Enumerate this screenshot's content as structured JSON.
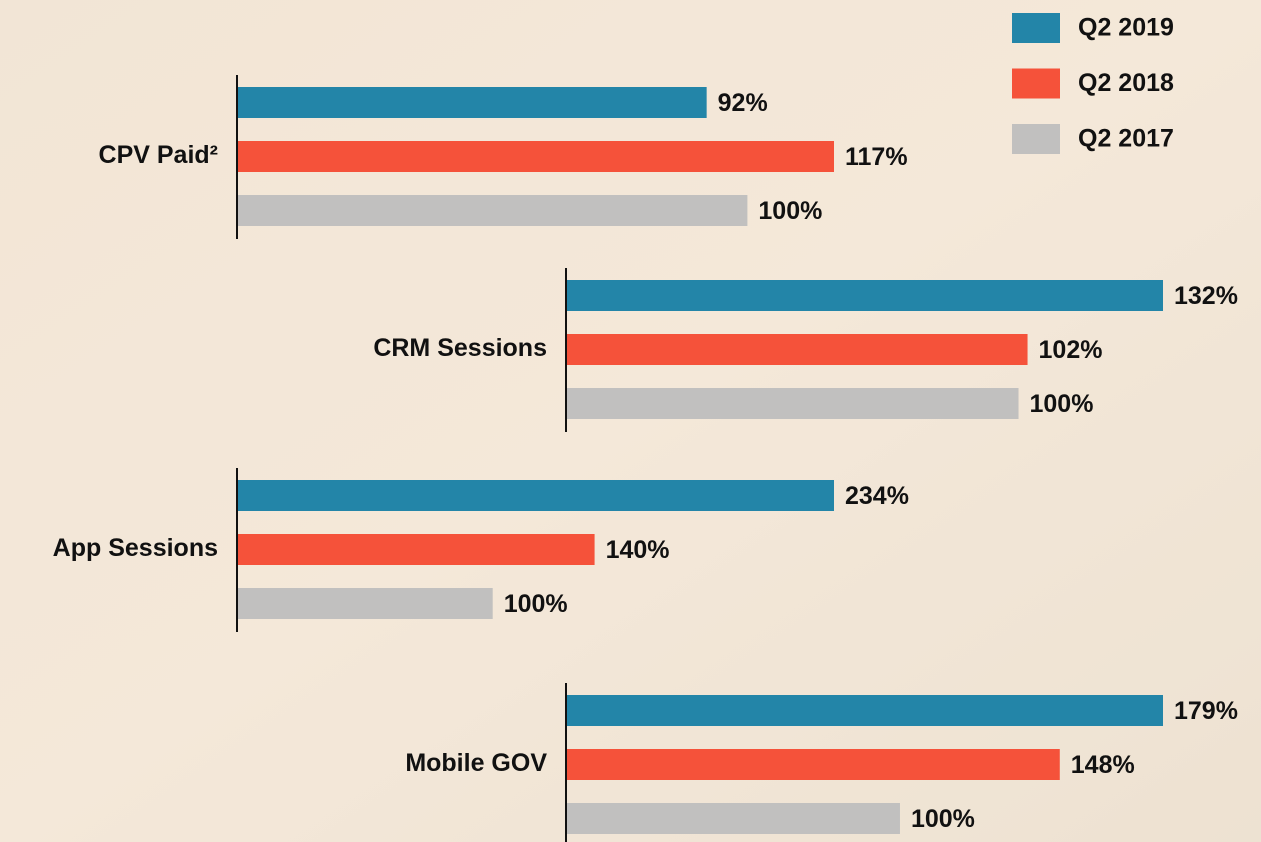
{
  "chart_data": {
    "type": "bar",
    "orientation": "horizontal",
    "categories": [
      "CPV Paid²",
      "CRM Sessions",
      "App Sessions",
      "Mobile GOV"
    ],
    "series": [
      {
        "name": "Q2 2019",
        "color": "#2385a8",
        "values": [
          92,
          132,
          234,
          179
        ],
        "value_labels": [
          "92%",
          "132%",
          "234%",
          "179%"
        ]
      },
      {
        "name": "Q2 2018",
        "color": "#f5523a",
        "values": [
          117,
          102,
          140,
          148
        ],
        "value_labels": [
          "117%",
          "102%",
          "140%",
          "148%"
        ]
      },
      {
        "name": "Q2 2017",
        "color": "#c1c0bf",
        "values": [
          100,
          100,
          100,
          100
        ],
        "value_labels": [
          "100%",
          "100%",
          "100%",
          "100%"
        ]
      }
    ],
    "legend": "top-right"
  }
}
